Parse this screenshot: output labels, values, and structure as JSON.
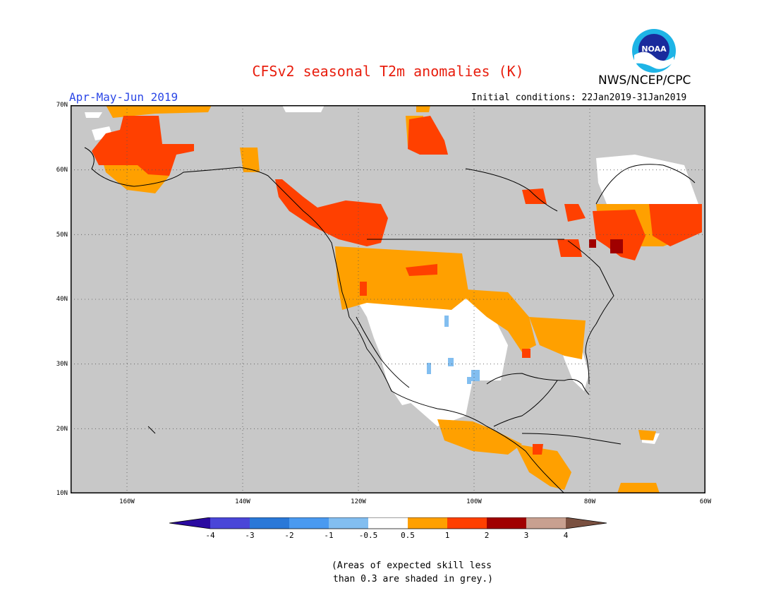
{
  "title": "CFSv2 seasonal T2m anomalies (K)",
  "season": "Apr-May-Jun 2019",
  "initial_conditions": "Initial conditions: 22Jan2019-31Jan2019",
  "agency": "NWS/NCEP/CPC",
  "logo_text": "NOAA",
  "colors": {
    "title": "#e81e0e",
    "season": "#2b47e6",
    "grey_low_skill": "#c8c8c8",
    "ocean": "#c8c8c8"
  },
  "map": {
    "region": "North America",
    "lon_range": [
      "160W",
      "60W"
    ],
    "lat_range": [
      "10N",
      "70N"
    ],
    "lat_labels": [
      "70N",
      "60N",
      "50N",
      "40N",
      "30N",
      "20N",
      "10N"
    ],
    "lon_labels": [
      "160W",
      "140W",
      "120W",
      "100W",
      "80W",
      "60W"
    ]
  },
  "colorbar": {
    "labels": [
      "-4",
      "-3",
      "-2",
      "-1",
      "-0.5",
      "0.5",
      "1",
      "2",
      "3",
      "4"
    ],
    "colors": [
      "#2a0aa0",
      "#4a46d8",
      "#2a78d8",
      "#4a9af0",
      "#82bef0",
      "#ffffff",
      "#ffa000",
      "#ff4000",
      "#a00000",
      "#c8a090",
      "#7a5040"
    ]
  },
  "note": {
    "line1": "(Areas of expected skill less",
    "line2": "than 0.3 are shaded in grey.)"
  }
}
